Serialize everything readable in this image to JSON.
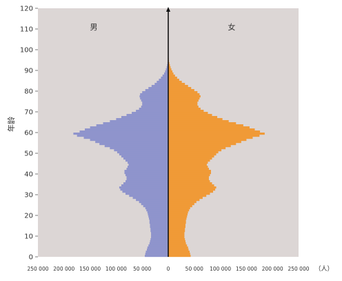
{
  "chart_data": {
    "type": "bar",
    "orientation": "horizontal",
    "layout": "population-pyramid",
    "ylabel": "年龄",
    "xunit": "（人）",
    "ylim": [
      0,
      120
    ],
    "yticks": [
      "0",
      "10",
      "20",
      "30",
      "40",
      "50",
      "60",
      "70",
      "80",
      "90",
      "100",
      "110",
      "120"
    ],
    "xticks_left": [
      "250 000",
      "200 000",
      "150 000",
      "100 000",
      "50 000"
    ],
    "xtick_zero": "0",
    "xticks_right": [
      "50 000",
      "100 000",
      "150 000",
      "200 000",
      "250 000"
    ],
    "xlim": [
      -250000,
      250000
    ],
    "background": "#dcd6d5",
    "series": [
      {
        "name": "男",
        "side": "left",
        "color": "#8f94cc",
        "age_start": 0,
        "values": [
          45000,
          44000,
          43000,
          41000,
          40000,
          38000,
          36000,
          35000,
          34000,
          33000,
          33000,
          33000,
          34000,
          34000,
          35000,
          35000,
          36000,
          36000,
          37000,
          38000,
          39000,
          40000,
          42000,
          44000,
          48000,
          52000,
          56000,
          62000,
          68000,
          75000,
          82000,
          88000,
          92000,
          94000,
          90000,
          86000,
          82000,
          80000,
          80000,
          82000,
          84000,
          84000,
          80000,
          78000,
          76000,
          78000,
          82000,
          86000,
          90000,
          94000,
          98000,
          104000,
          112000,
          122000,
          132000,
          140000,
          150000,
          162000,
          175000,
          182000,
          170000,
          160000,
          150000,
          138000,
          125000,
          112000,
          100000,
          90000,
          80000,
          70000,
          62000,
          56000,
          52000,
          50000,
          50000,
          52000,
          54000,
          55000,
          54000,
          50000,
          44000,
          38000,
          32000,
          26000,
          22000,
          18000,
          14000,
          11000,
          8000,
          6000,
          4500,
          3200,
          2200,
          1400,
          900,
          500,
          250,
          120,
          60,
          30,
          15,
          5,
          0
        ]
      },
      {
        "name": "女",
        "side": "right",
        "color": "#f09a37",
        "age_start": 0,
        "values": [
          43000,
          42000,
          41000,
          39000,
          38000,
          36000,
          34000,
          33000,
          32000,
          31000,
          31000,
          31000,
          32000,
          32000,
          33000,
          33000,
          34000,
          34000,
          35000,
          36000,
          37000,
          38000,
          40000,
          42000,
          46000,
          50000,
          54000,
          60000,
          66000,
          73000,
          80000,
          86000,
          90000,
          92000,
          88000,
          84000,
          80000,
          78000,
          78000,
          80000,
          82000,
          82000,
          78000,
          76000,
          74000,
          76000,
          80000,
          84000,
          88000,
          92000,
          96000,
          102000,
          110000,
          120000,
          130000,
          140000,
          150000,
          162000,
          175000,
          185000,
          176000,
          166000,
          156000,
          144000,
          130000,
          116000,
          104000,
          94000,
          84000,
          76000,
          68000,
          62000,
          58000,
          56000,
          56000,
          58000,
          60000,
          62000,
          60000,
          56000,
          50000,
          44000,
          38000,
          32000,
          26000,
          21000,
          17000,
          13000,
          10000,
          8000,
          6000,
          4500,
          3200,
          2200,
          1400,
          900,
          500,
          250,
          120,
          60,
          30,
          10,
          0
        ]
      }
    ]
  }
}
